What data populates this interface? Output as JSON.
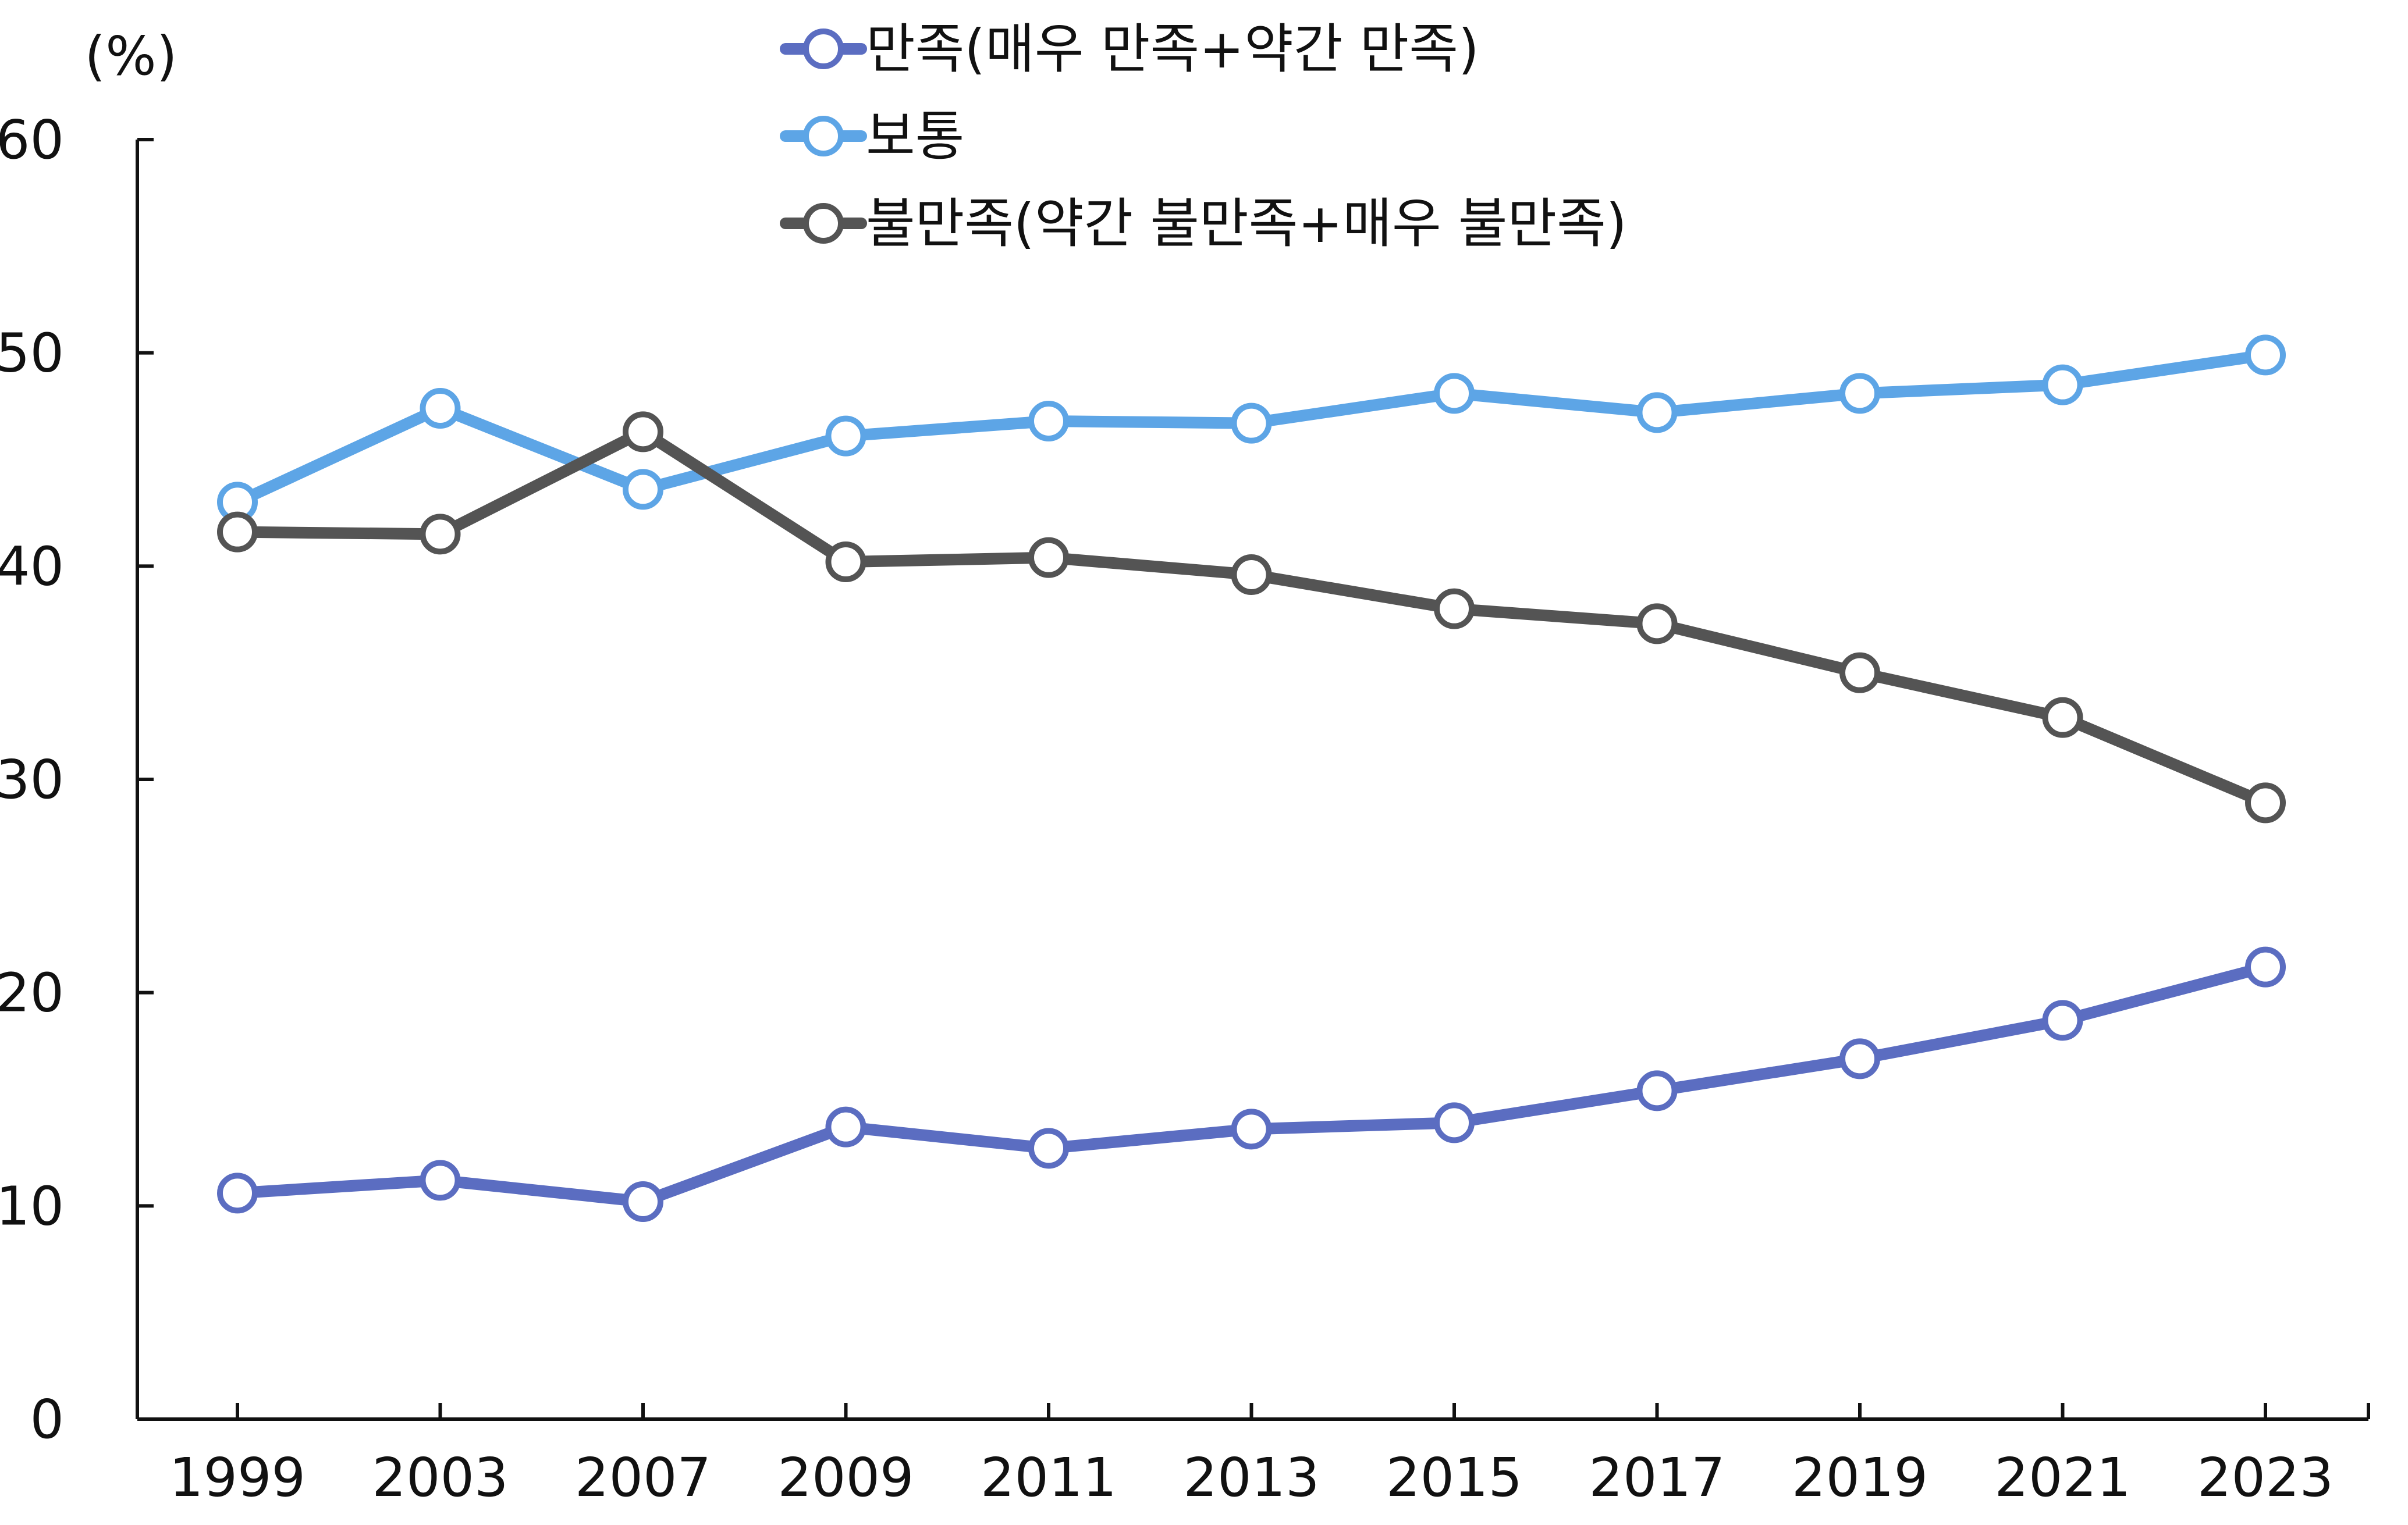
{
  "chart_data": {
    "type": "line",
    "title": "",
    "xlabel": "",
    "ylabel": "(%)",
    "categories": [
      "1999",
      "2003",
      "2007",
      "2009",
      "2011",
      "2013",
      "2015",
      "2017",
      "2019",
      "2021",
      "2023"
    ],
    "ylim": [
      0,
      60
    ],
    "yticks": [
      "0",
      "10",
      "20",
      "30",
      "40",
      "50",
      "60"
    ],
    "grid": false,
    "legend_position": "top-center",
    "series": [
      {
        "name": "만족(매우 만족+약간 만족)",
        "color": "#5B6DC1",
        "values": [
          10.6,
          11.2,
          10.2,
          13.7,
          12.7,
          13.6,
          13.9,
          15.4,
          16.9,
          18.7,
          21.2
        ]
      },
      {
        "name": "보통",
        "color": "#5DA5E6",
        "values": [
          43.0,
          47.4,
          43.6,
          46.1,
          46.8,
          46.7,
          48.1,
          47.2,
          48.1,
          48.5,
          49.9
        ]
      },
      {
        "name": "불만족(약간 불만족+매우 불만족)",
        "color": "#545454",
        "values": [
          41.6,
          41.5,
          46.3,
          40.2,
          40.4,
          39.6,
          38.0,
          37.3,
          35.0,
          32.9,
          28.9
        ]
      }
    ]
  }
}
